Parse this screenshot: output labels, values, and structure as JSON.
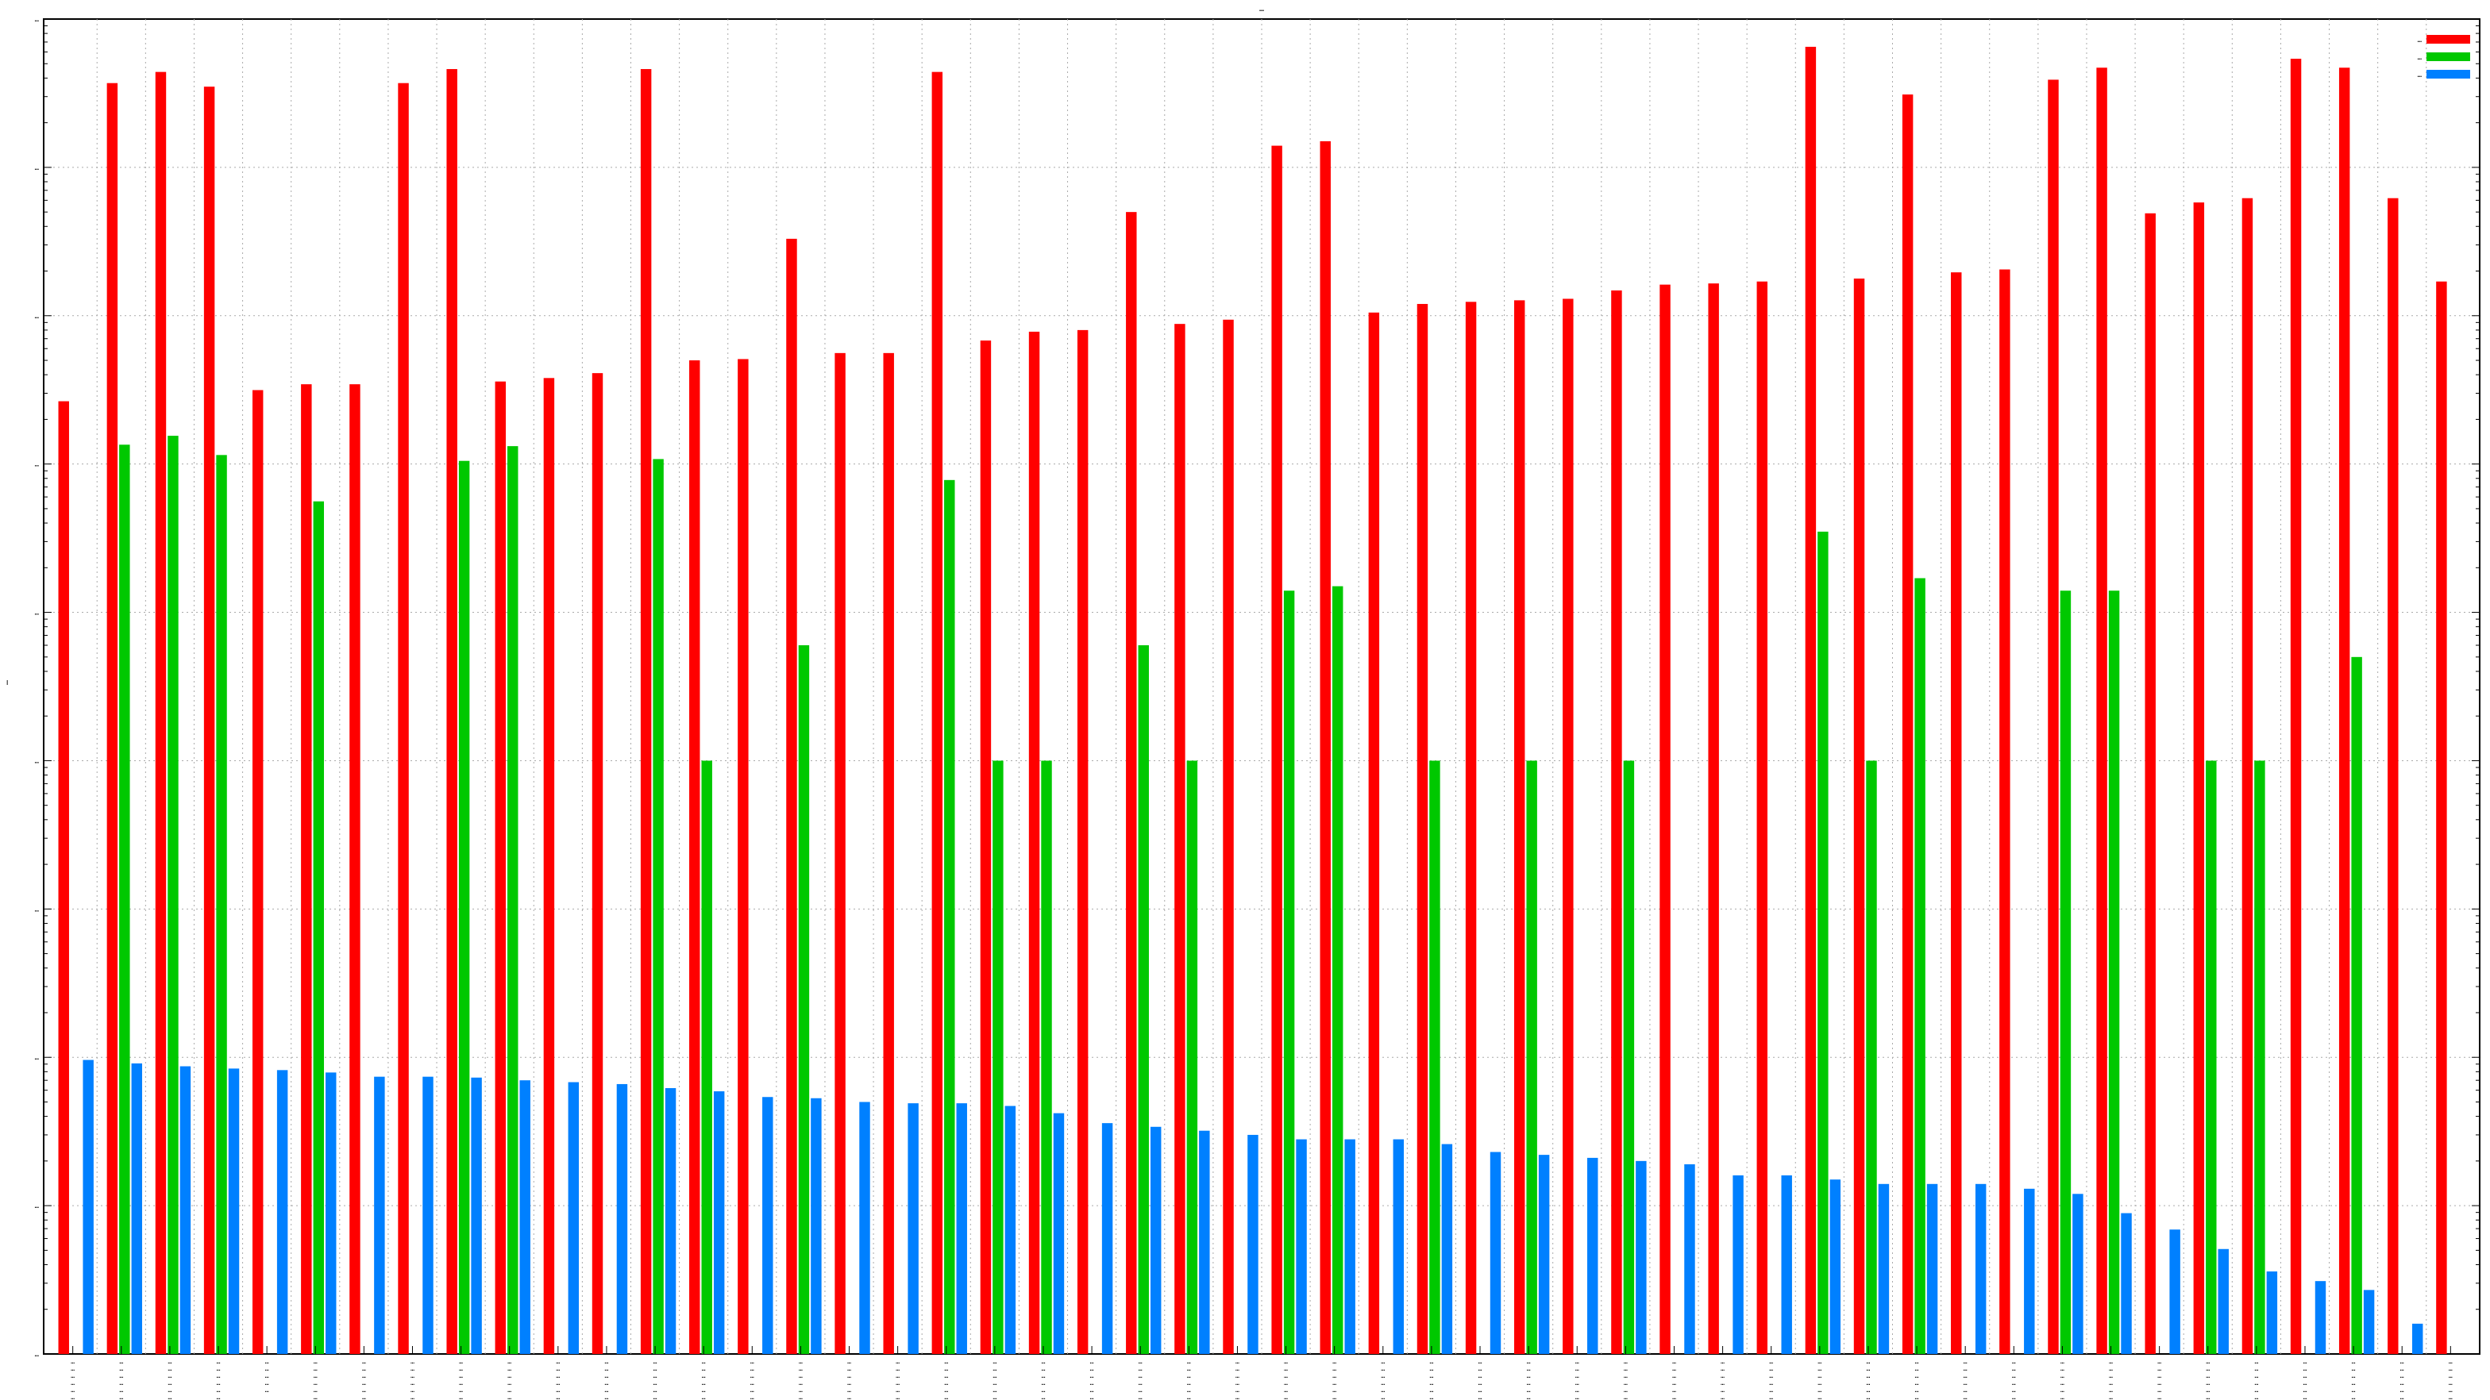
{
  "chart_data": {
    "type": "bar",
    "title": "…",
    "ylabel": "…",
    "xlabel": "",
    "yscale": "log",
    "ylim": [
      0.0001,
      100000
    ],
    "grid": true,
    "legend_position": "top-right",
    "y_ticks": [
      "…",
      "…",
      "…",
      "…",
      "…",
      "…",
      "…",
      "…",
      "…",
      "…"
    ],
    "categories": [
      [
        "…",
        "…",
        "…",
        "…",
        "…",
        "…"
      ],
      [
        "…",
        "…",
        "…",
        "…",
        "…",
        "…"
      ],
      [
        "…",
        "…",
        "…",
        "…",
        "…",
        "…"
      ],
      [
        "…",
        "…",
        "…",
        "…",
        "…",
        "…"
      ],
      [
        "…",
        "…",
        "…",
        "…",
        "…"
      ],
      [
        "…",
        "…",
        "…",
        "…",
        "…",
        "…"
      ],
      [
        "…",
        "…",
        "…",
        "…",
        "…",
        "…"
      ],
      [
        "…",
        "…",
        "…",
        "…",
        "…",
        "…"
      ],
      [
        "…",
        "…",
        "…",
        "…",
        "…",
        "…"
      ],
      [
        "…",
        "…",
        "…",
        "…",
        "…",
        "…"
      ],
      [
        "…",
        "…",
        "…",
        "…",
        "…",
        "…"
      ],
      [
        "…",
        "…",
        "…",
        "…",
        "…",
        "…"
      ],
      [
        "…",
        "…",
        "…",
        "…",
        "…",
        "…"
      ],
      [
        "…",
        "…",
        "…",
        "…",
        "…",
        "…"
      ],
      [
        "…",
        "…",
        "…",
        "…",
        "…",
        "…"
      ],
      [
        "…",
        "…",
        "…",
        "…",
        "…",
        "…"
      ],
      [
        "…",
        "…",
        "…",
        "…",
        "…",
        "…"
      ],
      [
        "…",
        "…",
        "…",
        "…",
        "…",
        "…"
      ],
      [
        "…",
        "…",
        "…",
        "…",
        "…",
        "…"
      ],
      [
        "…",
        "…",
        "…",
        "…",
        "…",
        "…"
      ],
      [
        "…",
        "…",
        "…",
        "…",
        "…",
        "…"
      ],
      [
        "…",
        "…",
        "…",
        "…",
        "…",
        "…"
      ],
      [
        "…",
        "…",
        "…",
        "…",
        "…",
        "…"
      ],
      [
        "…",
        "…",
        "…",
        "…",
        "…",
        "…"
      ],
      [
        "…",
        "…",
        "…",
        "…",
        "…",
        "…"
      ],
      [
        "…",
        "…",
        "…",
        "…",
        "…",
        "…"
      ],
      [
        "…",
        "…",
        "…",
        "…",
        "…",
        "…"
      ],
      [
        "…",
        "…",
        "…",
        "…",
        "…",
        "…"
      ],
      [
        "…",
        "…",
        "…",
        "…",
        "…",
        "…"
      ],
      [
        "…",
        "…",
        "…",
        "…",
        "…",
        "…"
      ],
      [
        "…",
        "…",
        "…",
        "…",
        "…",
        "…"
      ],
      [
        "…",
        "…",
        "…",
        "…",
        "…",
        "…"
      ],
      [
        "…",
        "…",
        "…",
        "…",
        "…",
        "…"
      ],
      [
        "…",
        "…",
        "…",
        "…",
        "…",
        "…"
      ],
      [
        "…",
        "…",
        "…",
        "…",
        "…",
        "…"
      ],
      [
        "…",
        "…",
        "…",
        "…",
        "…",
        "…"
      ],
      [
        "…",
        "…",
        "…",
        "…",
        "…",
        "…"
      ],
      [
        "…",
        "…",
        "…",
        "…",
        "…",
        "…"
      ],
      [
        "…",
        "…",
        "…",
        "…",
        "…",
        "…"
      ],
      [
        "…",
        "…",
        "…",
        "…",
        "…",
        "…"
      ],
      [
        "…",
        "…",
        "…",
        "…",
        "…",
        "…"
      ],
      [
        "…",
        "…",
        "…",
        "…",
        "…",
        "…"
      ],
      [
        "…",
        "…",
        "…",
        "…",
        "…",
        "…"
      ],
      [
        "…",
        "…",
        "…",
        "…",
        "…",
        "…"
      ],
      [
        "…",
        "…",
        "…",
        "…",
        "…",
        "…"
      ],
      [
        "…",
        "…",
        "…",
        "…",
        "…",
        "…"
      ],
      [
        "…",
        "…",
        "…",
        "…",
        "…",
        "…"
      ],
      [
        "…",
        "…",
        "…",
        "…",
        "…",
        "…"
      ],
      [
        "…",
        "…",
        "…",
        "…",
        "…",
        "…"
      ],
      [
        "…",
        "…",
        "…",
        "…",
        "…",
        "…"
      ]
    ],
    "series": [
      {
        "name": "…",
        "color": "#ff0000",
        "values": [
          265,
          37000,
          44000,
          35000,
          315,
          345,
          345,
          37000,
          46000,
          360,
          380,
          410,
          46000,
          500,
          510,
          3300,
          560,
          560,
          44000,
          680,
          780,
          800,
          5000,
          880,
          940,
          14000,
          15000,
          1050,
          1200,
          1240,
          1270,
          1300,
          1480,
          1620,
          1650,
          1700,
          65000,
          1780,
          31000,
          1960,
          2050,
          39000,
          47000,
          4900,
          5800,
          6200,
          54000,
          47000,
          6200,
          1700
        ]
      },
      {
        "name": "…",
        "color": "#00c800",
        "values": [
          null,
          135,
          155,
          115,
          null,
          56,
          null,
          null,
          105,
          132,
          null,
          null,
          108,
          1,
          null,
          6,
          null,
          null,
          78,
          1,
          1,
          null,
          6,
          1,
          null,
          14,
          15,
          null,
          1,
          null,
          1,
          null,
          1,
          null,
          null,
          null,
          35,
          1,
          17,
          null,
          null,
          14,
          14,
          null,
          1,
          1,
          null,
          5,
          null,
          null
        ]
      },
      {
        "name": "…",
        "color": "#0080ff",
        "values": [
          0.0096,
          0.0091,
          0.0087,
          0.0084,
          0.0082,
          0.0079,
          0.0074,
          0.0074,
          0.0073,
          0.007,
          0.0068,
          0.0066,
          0.0062,
          0.0059,
          0.0054,
          0.0053,
          0.005,
          0.0049,
          0.0049,
          0.0047,
          0.0042,
          0.0036,
          0.0034,
          0.0032,
          0.003,
          0.0028,
          0.0028,
          0.0028,
          0.0026,
          0.0023,
          0.0022,
          0.0021,
          0.002,
          0.0019,
          0.0016,
          0.0016,
          0.0015,
          0.0014,
          0.0014,
          0.0014,
          0.0013,
          0.0012,
          0.00089,
          0.00069,
          0.00051,
          0.00036,
          0.00031,
          0.00027,
          0.00016,
          0.0001
        ]
      }
    ]
  }
}
